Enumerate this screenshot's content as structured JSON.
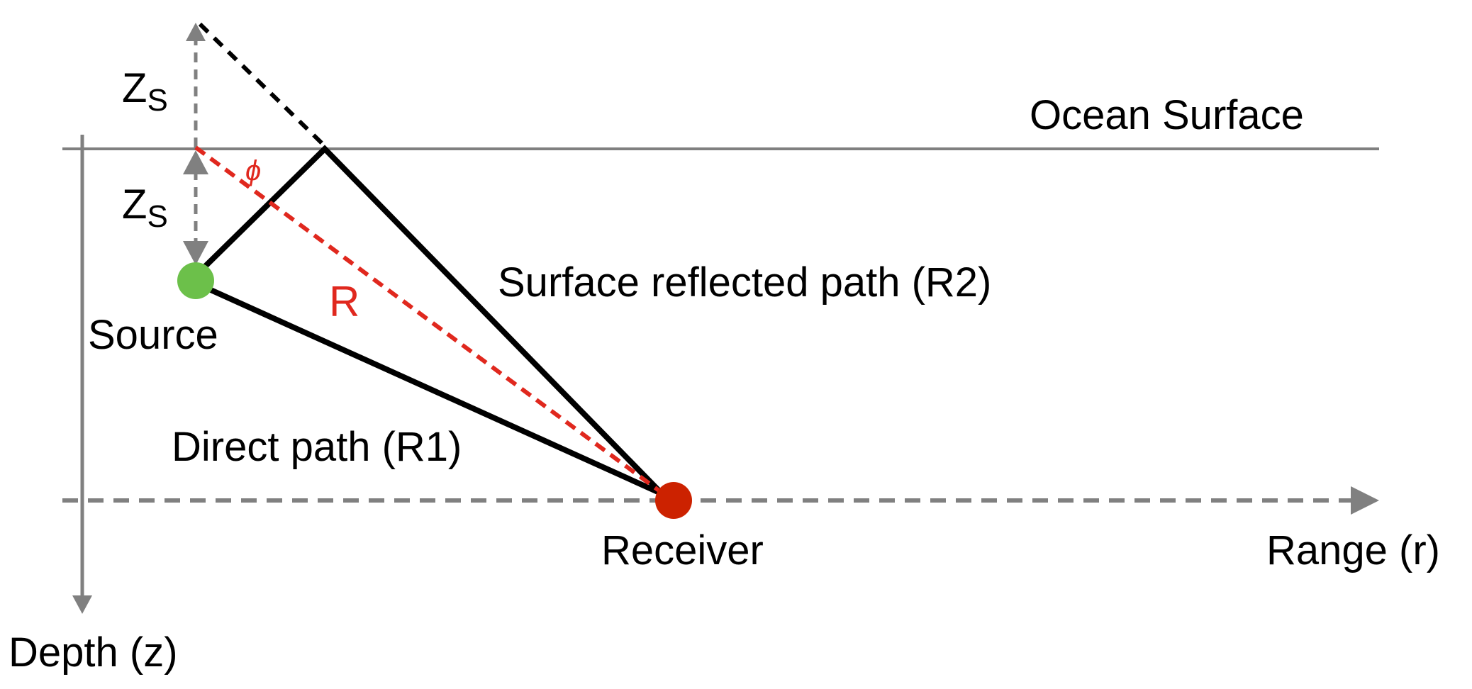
{
  "labels": {
    "ocean_surface": "Ocean Surface",
    "source": "Source",
    "receiver": "Receiver",
    "range_axis": "Range (r)",
    "depth_axis": "Depth (z)",
    "direct_path": "Direct path (R1)",
    "reflected_path": "Surface reflected path (R2)",
    "r": "R",
    "phi": "ϕ",
    "zs_main": "Z",
    "zs_sub": "S"
  },
  "colors": {
    "axis_gray": "#808080",
    "path_black": "#000000",
    "geometry_red": "#e0281e",
    "source_green": "#6cc04a",
    "receiver_red": "#cc2200"
  }
}
